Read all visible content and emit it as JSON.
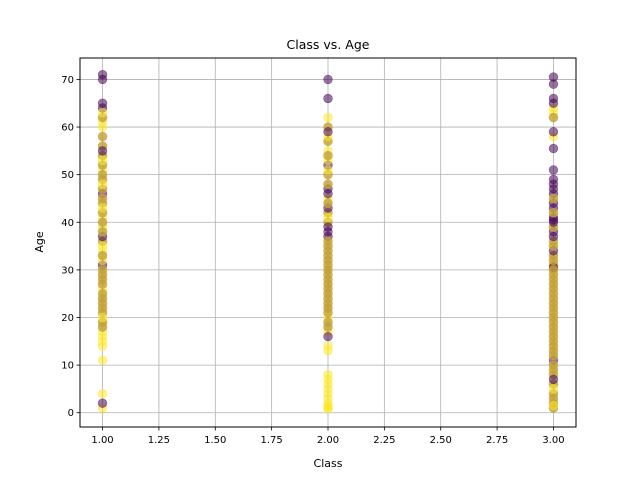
{
  "chart_data": {
    "type": "scatter",
    "title": "Class vs. Age",
    "xlabel": "Class",
    "ylabel": "Age",
    "xlim": [
      0.9,
      3.1
    ],
    "ylim": [
      -3,
      74.5
    ],
    "xticks": [
      1.0,
      1.25,
      1.5,
      1.75,
      2.0,
      2.25,
      2.5,
      2.75,
      3.0
    ],
    "xtick_labels": [
      "1.00",
      "1.25",
      "1.50",
      "1.75",
      "2.00",
      "2.25",
      "2.50",
      "2.75",
      "3.00"
    ],
    "yticks": [
      0,
      10,
      20,
      30,
      40,
      50,
      60,
      70
    ],
    "ytick_labels": [
      "0",
      "10",
      "20",
      "30",
      "40",
      "50",
      "60",
      "70"
    ],
    "grid": true,
    "colormap": [
      "#440154",
      "#fde725"
    ],
    "point_alpha": 0.55,
    "series": [
      {
        "color": "#440154",
        "points": [
          [
            1,
            71
          ],
          [
            1,
            70
          ],
          [
            1,
            65
          ],
          [
            1,
            64
          ],
          [
            1,
            62
          ],
          [
            1,
            58
          ],
          [
            1,
            56
          ],
          [
            1,
            55
          ],
          [
            1,
            54
          ],
          [
            1,
            52
          ],
          [
            1,
            50
          ],
          [
            1,
            49
          ],
          [
            1,
            47
          ],
          [
            1,
            46
          ],
          [
            1,
            45
          ],
          [
            1,
            44
          ],
          [
            1,
            42
          ],
          [
            1,
            40
          ],
          [
            1,
            38
          ],
          [
            1,
            37
          ],
          [
            1,
            36
          ],
          [
            1,
            33
          ],
          [
            1,
            31
          ],
          [
            1,
            30
          ],
          [
            1,
            29
          ],
          [
            1,
            28
          ],
          [
            1,
            27
          ],
          [
            1,
            25
          ],
          [
            1,
            24
          ],
          [
            1,
            23
          ],
          [
            1,
            22
          ],
          [
            1,
            21
          ],
          [
            1,
            19
          ],
          [
            1,
            18
          ],
          [
            1,
            2
          ],
          [
            2,
            70
          ],
          [
            2,
            66
          ],
          [
            2,
            60
          ],
          [
            2,
            59
          ],
          [
            2,
            57
          ],
          [
            2,
            54
          ],
          [
            2,
            52
          ],
          [
            2,
            50
          ],
          [
            2,
            48
          ],
          [
            2,
            47
          ],
          [
            2,
            46
          ],
          [
            2,
            44
          ],
          [
            2,
            43
          ],
          [
            2,
            42
          ],
          [
            2,
            40
          ],
          [
            2,
            39
          ],
          [
            2,
            38
          ],
          [
            2,
            37
          ],
          [
            2,
            36
          ],
          [
            2,
            35
          ],
          [
            2,
            34
          ],
          [
            2,
            33
          ],
          [
            2,
            32
          ],
          [
            2,
            31
          ],
          [
            2,
            30
          ],
          [
            2,
            29
          ],
          [
            2,
            28
          ],
          [
            2,
            27
          ],
          [
            2,
            26
          ],
          [
            2,
            25
          ],
          [
            2,
            24
          ],
          [
            2,
            23
          ],
          [
            2,
            22
          ],
          [
            2,
            21
          ],
          [
            2,
            19
          ],
          [
            2,
            18
          ],
          [
            2,
            16
          ],
          [
            3,
            70.5
          ],
          [
            3,
            69
          ],
          [
            3,
            66
          ],
          [
            3,
            65
          ],
          [
            3,
            62
          ],
          [
            3,
            59
          ],
          [
            3,
            55.5
          ],
          [
            3,
            51
          ],
          [
            3,
            49
          ],
          [
            3,
            48
          ],
          [
            3,
            47
          ],
          [
            3,
            46
          ],
          [
            3,
            45
          ],
          [
            3,
            44
          ],
          [
            3,
            43
          ],
          [
            3,
            42
          ],
          [
            3,
            41
          ],
          [
            3,
            40.5
          ],
          [
            3,
            40
          ],
          [
            3,
            39
          ],
          [
            3,
            38
          ],
          [
            3,
            37
          ],
          [
            3,
            36
          ],
          [
            3,
            35
          ],
          [
            3,
            34
          ],
          [
            3,
            33
          ],
          [
            3,
            32
          ],
          [
            3,
            31
          ],
          [
            3,
            30.5
          ],
          [
            3,
            30
          ],
          [
            3,
            29
          ],
          [
            3,
            28
          ],
          [
            3,
            27
          ],
          [
            3,
            26
          ],
          [
            3,
            25
          ],
          [
            3,
            24
          ],
          [
            3,
            23
          ],
          [
            3,
            22
          ],
          [
            3,
            21
          ],
          [
            3,
            20
          ],
          [
            3,
            19
          ],
          [
            3,
            18
          ],
          [
            3,
            17
          ],
          [
            3,
            16
          ],
          [
            3,
            15
          ],
          [
            3,
            14
          ],
          [
            3,
            13
          ],
          [
            3,
            12
          ],
          [
            3,
            11
          ],
          [
            3,
            10
          ],
          [
            3,
            9
          ],
          [
            3,
            8
          ],
          [
            3,
            7
          ],
          [
            3,
            6
          ],
          [
            3,
            4
          ],
          [
            3,
            3
          ],
          [
            3,
            2
          ],
          [
            3,
            1
          ]
        ]
      },
      {
        "color": "#fde725",
        "points": [
          [
            1,
            63
          ],
          [
            1,
            62
          ],
          [
            1,
            61
          ],
          [
            1,
            60
          ],
          [
            1,
            58
          ],
          [
            1,
            56
          ],
          [
            1,
            54
          ],
          [
            1,
            53
          ],
          [
            1,
            52
          ],
          [
            1,
            51
          ],
          [
            1,
            50
          ],
          [
            1,
            49
          ],
          [
            1,
            48
          ],
          [
            1,
            47
          ],
          [
            1,
            45
          ],
          [
            1,
            44
          ],
          [
            1,
            43
          ],
          [
            1,
            42
          ],
          [
            1,
            41
          ],
          [
            1,
            40
          ],
          [
            1,
            39
          ],
          [
            1,
            38
          ],
          [
            1,
            36
          ],
          [
            1,
            35
          ],
          [
            1,
            34
          ],
          [
            1,
            33
          ],
          [
            1,
            32
          ],
          [
            1,
            30
          ],
          [
            1,
            29
          ],
          [
            1,
            28
          ],
          [
            1,
            27
          ],
          [
            1,
            26
          ],
          [
            1,
            25
          ],
          [
            1,
            24
          ],
          [
            1,
            23
          ],
          [
            1,
            22
          ],
          [
            1,
            21
          ],
          [
            1,
            20
          ],
          [
            1,
            19
          ],
          [
            1,
            18
          ],
          [
            1,
            17
          ],
          [
            1,
            16
          ],
          [
            1,
            15
          ],
          [
            1,
            14
          ],
          [
            1,
            11
          ],
          [
            1,
            4
          ],
          [
            1,
            1
          ],
          [
            2,
            62
          ],
          [
            2,
            60
          ],
          [
            2,
            58
          ],
          [
            2,
            57
          ],
          [
            2,
            55
          ],
          [
            2,
            54
          ],
          [
            2,
            53
          ],
          [
            2,
            51
          ],
          [
            2,
            50
          ],
          [
            2,
            48
          ],
          [
            2,
            45
          ],
          [
            2,
            44
          ],
          [
            2,
            42
          ],
          [
            2,
            41
          ],
          [
            2,
            40
          ],
          [
            2,
            36
          ],
          [
            2,
            35
          ],
          [
            2,
            34
          ],
          [
            2,
            33
          ],
          [
            2,
            32
          ],
          [
            2,
            31
          ],
          [
            2,
            30
          ],
          [
            2,
            29
          ],
          [
            2,
            28
          ],
          [
            2,
            27
          ],
          [
            2,
            26
          ],
          [
            2,
            25
          ],
          [
            2,
            24
          ],
          [
            2,
            23
          ],
          [
            2,
            22
          ],
          [
            2,
            21
          ],
          [
            2,
            20
          ],
          [
            2,
            19
          ],
          [
            2,
            18
          ],
          [
            2,
            17
          ],
          [
            2,
            14
          ],
          [
            2,
            13
          ],
          [
            2,
            8
          ],
          [
            2,
            7
          ],
          [
            2,
            6
          ],
          [
            2,
            5
          ],
          [
            2,
            4
          ],
          [
            2,
            3
          ],
          [
            2,
            2
          ],
          [
            2,
            1.5
          ],
          [
            2,
            1
          ],
          [
            2,
            0.8
          ],
          [
            3,
            64
          ],
          [
            3,
            63
          ],
          [
            3,
            62
          ],
          [
            3,
            58
          ],
          [
            3,
            45
          ],
          [
            3,
            42
          ],
          [
            3,
            39
          ],
          [
            3,
            36
          ],
          [
            3,
            35
          ],
          [
            3,
            33
          ],
          [
            3,
            32
          ],
          [
            3,
            31
          ],
          [
            3,
            30
          ],
          [
            3,
            29
          ],
          [
            3,
            28
          ],
          [
            3,
            27
          ],
          [
            3,
            26
          ],
          [
            3,
            25
          ],
          [
            3,
            24
          ],
          [
            3,
            23
          ],
          [
            3,
            22
          ],
          [
            3,
            21
          ],
          [
            3,
            20
          ],
          [
            3,
            19
          ],
          [
            3,
            18
          ],
          [
            3,
            17
          ],
          [
            3,
            16
          ],
          [
            3,
            15
          ],
          [
            3,
            14
          ],
          [
            3,
            13
          ],
          [
            3,
            12
          ],
          [
            3,
            10
          ],
          [
            3,
            9
          ],
          [
            3,
            8
          ],
          [
            3,
            6
          ],
          [
            3,
            5
          ],
          [
            3,
            4
          ],
          [
            3,
            3
          ],
          [
            3,
            2
          ],
          [
            3,
            1.5
          ],
          [
            3,
            1
          ]
        ]
      }
    ]
  }
}
